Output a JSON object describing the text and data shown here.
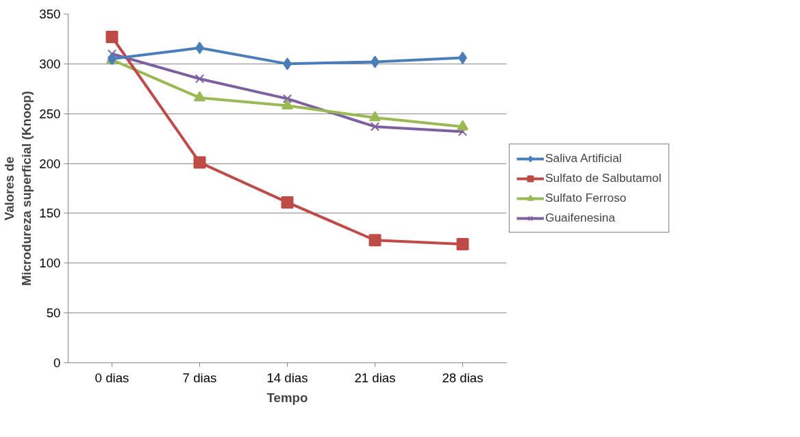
{
  "chart_data": {
    "type": "line",
    "xlabel": "Tempo",
    "ylabel": "Valores de Microdureza superficial (Knoop)",
    "categories": [
      "0 dias",
      "7 dias",
      "14 dias",
      "21 dias",
      "28 dias"
    ],
    "series": [
      {
        "name": "Saliva Artificial",
        "color": "#4a7ebb",
        "marker": "diamond",
        "values": [
          305,
          316,
          300,
          302,
          306
        ]
      },
      {
        "name": "Sulfato de Salbutamol",
        "color": "#be4b48",
        "marker": "square",
        "values": [
          327,
          201,
          161,
          123,
          119
        ]
      },
      {
        "name": "Sulfato Ferroso",
        "color": "#98b954",
        "marker": "triangle",
        "values": [
          304,
          266,
          258,
          246,
          237
        ]
      },
      {
        "name": "Guaifenesina",
        "color": "#7d60a0",
        "marker": "cross",
        "values": [
          310,
          285,
          265,
          237,
          232
        ]
      }
    ],
    "ylim": [
      0,
      350
    ],
    "yticks": [
      0,
      50,
      100,
      150,
      200,
      250,
      300,
      350
    ],
    "grid": "y",
    "legend": "right",
    "line_style": "solid"
  }
}
